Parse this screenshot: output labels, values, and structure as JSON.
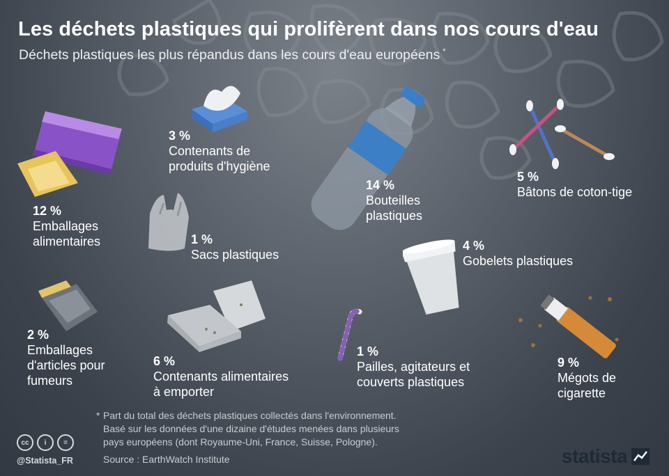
{
  "header": {
    "title": "Les déchets plastiques qui prolifèrent dans nos cours d'eau",
    "subtitle": "Déchets plastiques les plus répandus dans les cours d'eau européens",
    "subtitle_marker": "*"
  },
  "items": [
    {
      "id": "emballages-alimentaires",
      "pct": "12 %",
      "label": "Emballages\nalimentaires",
      "icon": "food-wrapper-icon"
    },
    {
      "id": "contenants-hygiene",
      "pct": "3 %",
      "label": "Contenants de\nproduits d'hygiène",
      "icon": "tissue-box-icon"
    },
    {
      "id": "bouteilles",
      "pct": "14 %",
      "label": "Bouteilles\nplastiques",
      "icon": "plastic-bottle-icon"
    },
    {
      "id": "coton-tige",
      "pct": "5 %",
      "label": "Bâtons de coton-tige",
      "icon": "cotton-swab-icon"
    },
    {
      "id": "sacs",
      "pct": "1 %",
      "label": "Sacs plastiques",
      "icon": "plastic-bag-icon"
    },
    {
      "id": "gobelets",
      "pct": "4 %",
      "label": "Gobelets plastiques",
      "icon": "plastic-cup-icon"
    },
    {
      "id": "fumeurs",
      "pct": "2 %",
      "label": "Emballages\nd'articles pour\nfumeurs",
      "icon": "tobacco-pack-icon"
    },
    {
      "id": "emporter",
      "pct": "6 %",
      "label": "Contenants alimentaires\nà emporter",
      "icon": "takeaway-box-icon"
    },
    {
      "id": "pailles",
      "pct": "1 %",
      "label": "Pailles, agitateurs et\ncouverts plastiques",
      "icon": "straw-icon"
    },
    {
      "id": "megots",
      "pct": "9 %",
      "label": "Mégots de\ncigarette",
      "icon": "cigarette-butt-icon"
    }
  ],
  "footnote": {
    "marker": "*",
    "lines": [
      "Part du total des déchets plastiques collectés dans l'environnement.",
      "Basé sur les données d'une dizaine d'études menées dans plusieurs",
      "pays européens (dont Royaume-Uni, France, Suisse, Pologne)."
    ]
  },
  "source": "Source : EarthWatch Institute",
  "handle": "@Statista_FR",
  "license_icons": [
    "cc",
    "i",
    "="
  ],
  "brand": "statista",
  "colors": {
    "background": "#4a515a",
    "text": "#ffffff",
    "bottle_label": "#3d7fc4",
    "brand": "#1e2a36"
  }
}
